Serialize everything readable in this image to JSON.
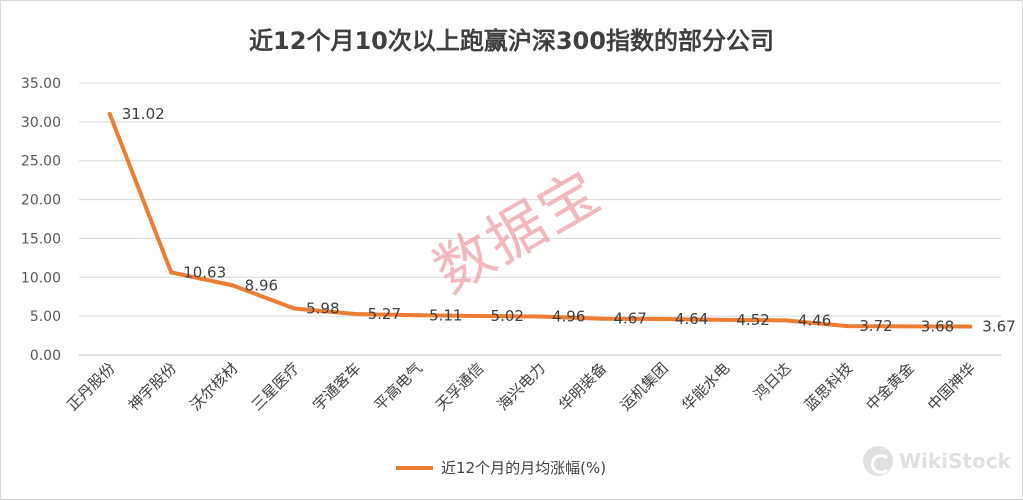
{
  "chart_data": {
    "type": "line",
    "title": "近12个月10次以上跑赢沪深300指数的部分公司",
    "categories": [
      "正丹股份",
      "神宇股份",
      "沃尔核材",
      "三星医疗",
      "宇通客车",
      "平高电气",
      "天孚通信",
      "海兴电力",
      "华明装备",
      "运机集团",
      "华能水电",
      "鸿日达",
      "蓝思科技",
      "中金黄金",
      "中国神华"
    ],
    "series": [
      {
        "name": "近12个月的月均涨幅(%)",
        "values": [
          31.02,
          10.63,
          8.96,
          5.98,
          5.27,
          5.11,
          5.02,
          4.96,
          4.67,
          4.64,
          4.52,
          4.46,
          3.72,
          3.68,
          3.67
        ]
      }
    ],
    "data_labels": [
      "31.02",
      "10.63",
      "8.96",
      "5.98",
      "5.27",
      "5.11",
      "5.02",
      "4.96",
      "4.67",
      "4.64",
      "4.52",
      "4.46",
      "3.72",
      "3.68",
      "3.67"
    ],
    "ylim": [
      0,
      35
    ],
    "y_ticks": [
      "0.00",
      "5.00",
      "10.00",
      "15.00",
      "20.00",
      "25.00",
      "30.00",
      "35.00"
    ],
    "grid": true,
    "legend_position": "bottom",
    "series_color": "#ed7d31"
  },
  "watermark": "数据宝",
  "brand_watermark": "WikiStock"
}
